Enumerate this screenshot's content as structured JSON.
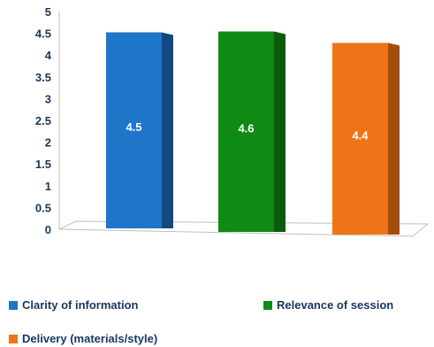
{
  "chart_data": {
    "type": "bar",
    "categories": [
      "Clarity of information",
      "Relevance of session",
      "Delivery (materials/style)"
    ],
    "values": [
      4.5,
      4.6,
      4.4
    ],
    "data_labels": [
      "4.5",
      "4.6",
      "4.4"
    ],
    "colors": [
      "#1f75c8",
      "#0f8a12",
      "#ef7417"
    ],
    "side_colors": [
      "#104a80",
      "#0a5c0b",
      "#a54e0c"
    ],
    "ylim": [
      0,
      5
    ],
    "yticks": [
      "0",
      "0.5",
      "1",
      "1.5",
      "2",
      "2.5",
      "3",
      "3.5",
      "4",
      "4.5",
      "5"
    ],
    "grid": false,
    "legend_position": "bottom",
    "style": "3d-column"
  },
  "legend": {
    "items": [
      {
        "label": "Clarity of information",
        "color": "#1f75c8"
      },
      {
        "label": "Relevance of session",
        "color": "#0f8a12"
      },
      {
        "label": "Delivery (materials/style)",
        "color": "#ef7417"
      }
    ]
  }
}
